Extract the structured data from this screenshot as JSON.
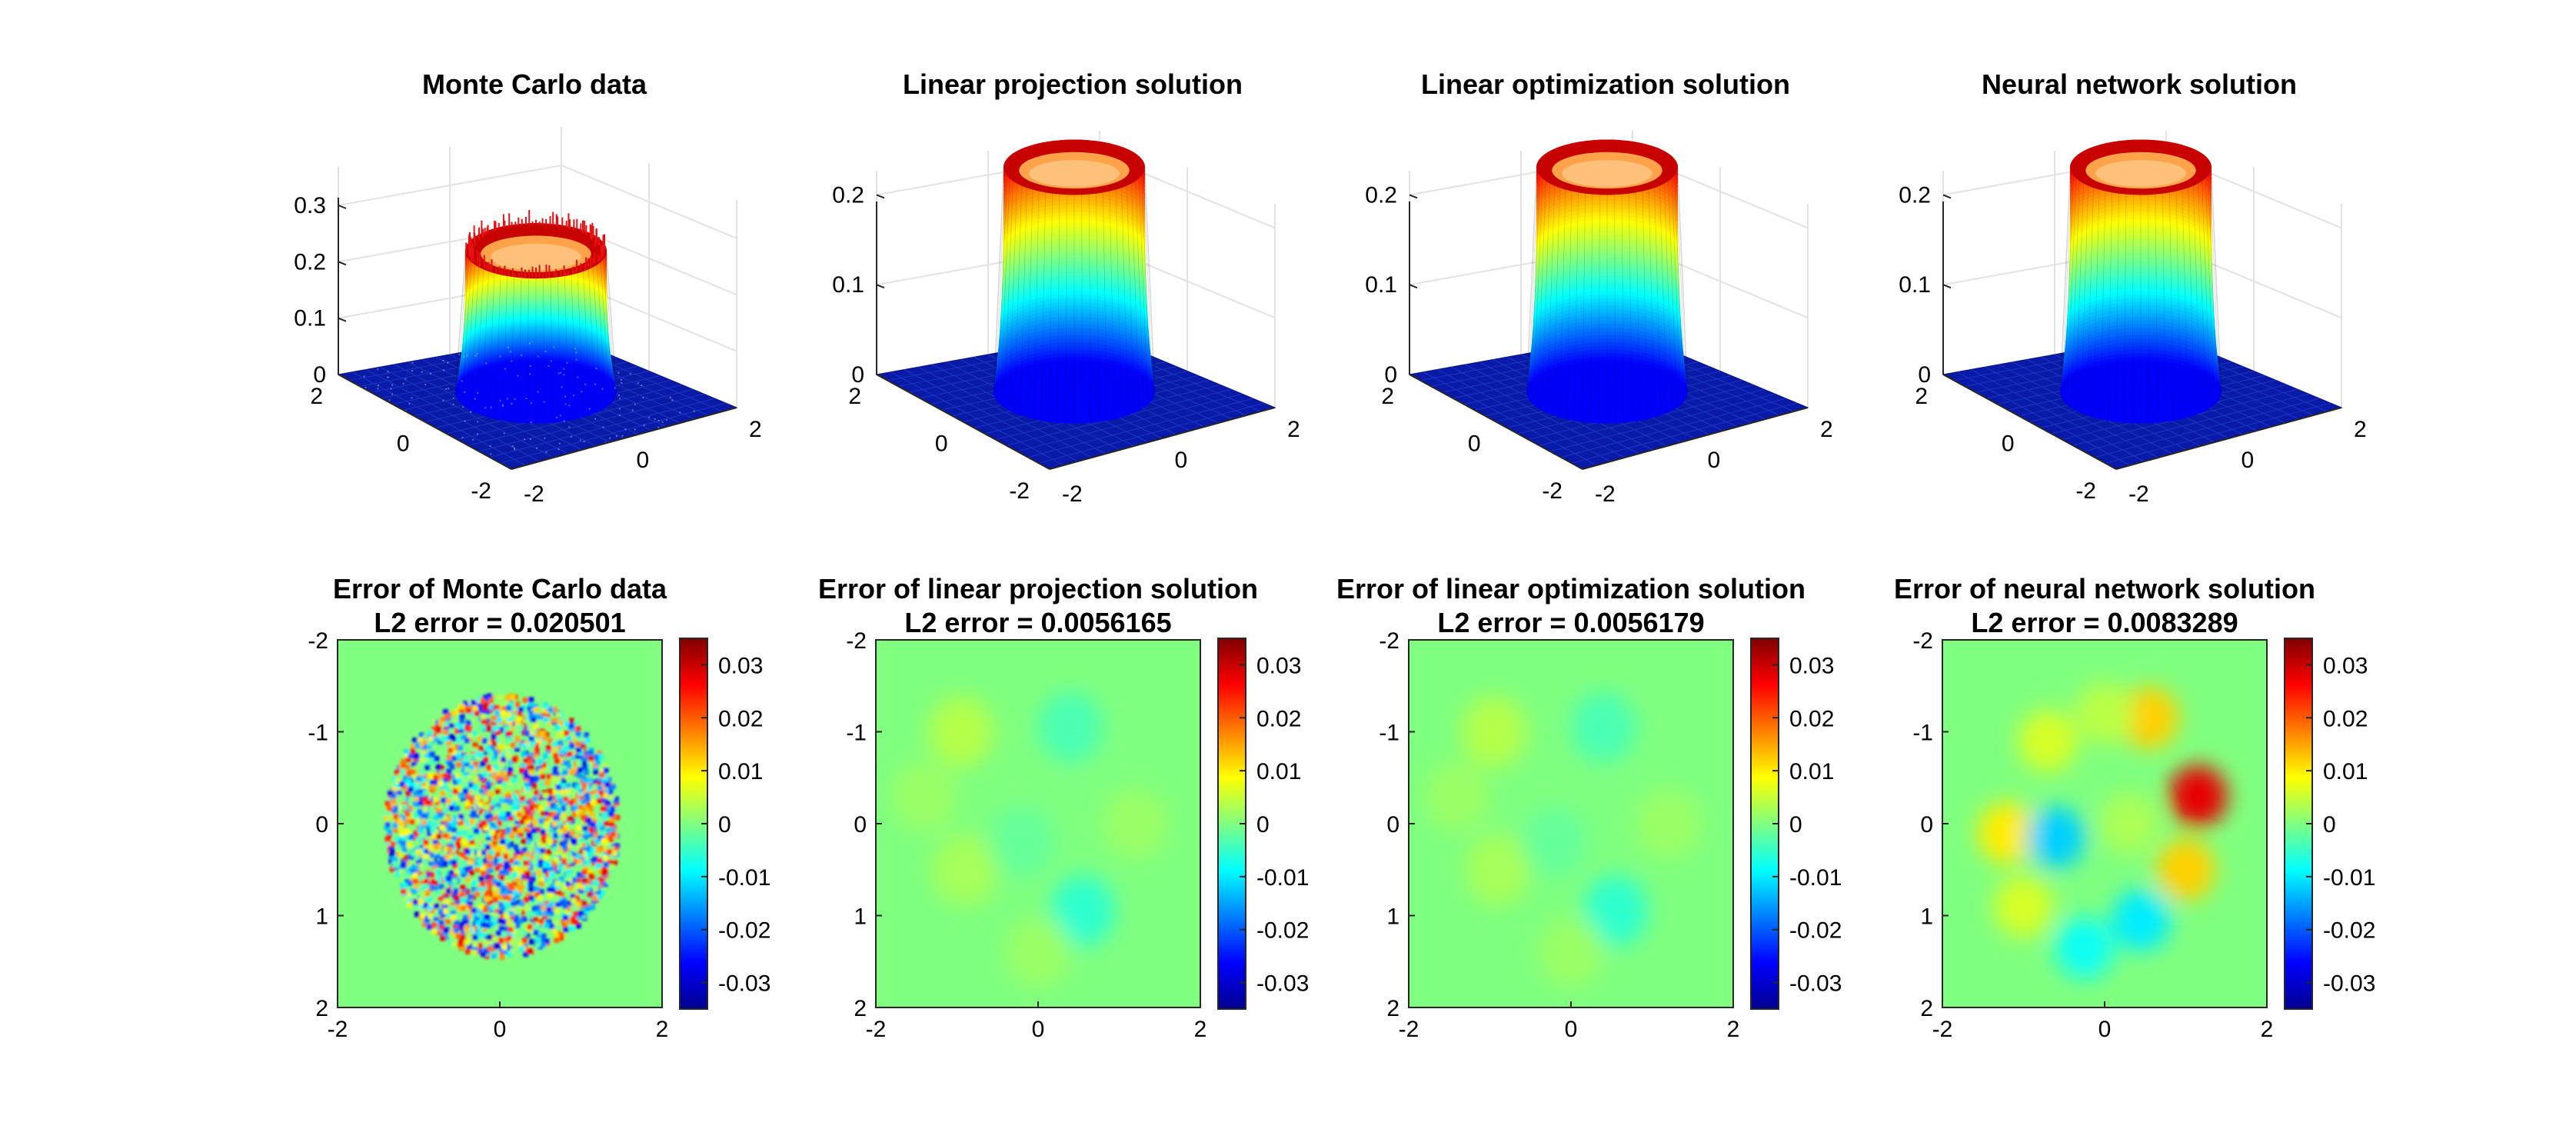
{
  "figure": {
    "background": "#ffffff"
  },
  "chart_data": [
    {
      "type": "surface",
      "title": "Monte Carlo data",
      "x_ticks": [
        "-2",
        "0",
        "2"
      ],
      "y_ticks": [
        "2",
        "0",
        "-2"
      ],
      "z_ticks": [
        "0",
        "0.1",
        "0.2",
        "0.3"
      ],
      "xlim": [
        -2,
        2
      ],
      "ylim": [
        -2,
        2
      ],
      "zlim": [
        0,
        0.3
      ],
      "colormap": "jet",
      "plateau_height": 0.25,
      "plateau_radius": 1.3,
      "noisy": true,
      "grid": true
    },
    {
      "type": "surface",
      "title": "Linear projection solution",
      "x_ticks": [
        "-2",
        "0",
        "2"
      ],
      "y_ticks": [
        "2",
        "0",
        "-2"
      ],
      "z_ticks": [
        "0",
        "0.1",
        "0.2"
      ],
      "xlim": [
        -2,
        2
      ],
      "ylim": [
        -2,
        2
      ],
      "zlim": [
        0,
        0.25
      ],
      "colormap": "jet",
      "plateau_height": 0.25,
      "plateau_radius": 1.3,
      "noisy": false,
      "grid": true
    },
    {
      "type": "surface",
      "title": "Linear optimization solution",
      "x_ticks": [
        "-2",
        "0",
        "2"
      ],
      "y_ticks": [
        "2",
        "0",
        "-2"
      ],
      "z_ticks": [
        "0",
        "0.1",
        "0.2"
      ],
      "xlim": [
        -2,
        2
      ],
      "ylim": [
        -2,
        2
      ],
      "zlim": [
        0,
        0.25
      ],
      "colormap": "jet",
      "plateau_height": 0.25,
      "plateau_radius": 1.3,
      "noisy": false,
      "grid": true
    },
    {
      "type": "surface",
      "title": "Neural network solution",
      "x_ticks": [
        "-2",
        "0",
        "2"
      ],
      "y_ticks": [
        "2",
        "0",
        "-2"
      ],
      "z_ticks": [
        "0",
        "0.1",
        "0.2"
      ],
      "xlim": [
        -2,
        2
      ],
      "ylim": [
        -2,
        2
      ],
      "zlim": [
        0,
        0.25
      ],
      "colormap": "jet",
      "plateau_height": 0.25,
      "plateau_radius": 1.3,
      "noisy": false,
      "grid": true
    },
    {
      "type": "heatmap",
      "title": "Error of Monte Carlo data",
      "subtitle": "L2 error = 0.020501",
      "x_ticks": [
        "-2",
        "0",
        "2"
      ],
      "y_ticks": [
        "-2",
        "-1",
        "0",
        "1",
        "2"
      ],
      "xlim": [
        -2,
        2
      ],
      "ylim": [
        -2,
        2
      ],
      "colorbar_ticks": [
        "0.03",
        "0.02",
        "0.01",
        "0",
        "-0.01",
        "-0.02",
        "-0.03"
      ],
      "clim": [
        -0.035,
        0.035
      ],
      "colormap": "jet",
      "pattern": "noise"
    },
    {
      "type": "heatmap",
      "title": "Error of linear projection solution",
      "subtitle": "L2 error = 0.0056165",
      "x_ticks": [
        "-2",
        "0",
        "2"
      ],
      "y_ticks": [
        "-2",
        "-1",
        "0",
        "1",
        "2"
      ],
      "xlim": [
        -2,
        2
      ],
      "ylim": [
        -2,
        2
      ],
      "colorbar_ticks": [
        "0.03",
        "0.02",
        "0.01",
        "0",
        "-0.01",
        "-0.02",
        "-0.03"
      ],
      "clim": [
        -0.035,
        0.035
      ],
      "colormap": "jet",
      "pattern": "smooth"
    },
    {
      "type": "heatmap",
      "title": "Error of linear optimization solution",
      "subtitle": "L2 error = 0.0056179",
      "x_ticks": [
        "-2",
        "0",
        "2"
      ],
      "y_ticks": [
        "-2",
        "-1",
        "0",
        "1",
        "2"
      ],
      "xlim": [
        -2,
        2
      ],
      "ylim": [
        -2,
        2
      ],
      "colorbar_ticks": [
        "0.03",
        "0.02",
        "0.01",
        "0",
        "-0.01",
        "-0.02",
        "-0.03"
      ],
      "clim": [
        -0.035,
        0.035
      ],
      "colormap": "jet",
      "pattern": "smooth"
    },
    {
      "type": "heatmap",
      "title": "Error of neural network solution",
      "subtitle": "L2 error = 0.0083289",
      "x_ticks": [
        "-2",
        "0",
        "2"
      ],
      "y_ticks": [
        "-2",
        "-1",
        "0",
        "1",
        "2"
      ],
      "xlim": [
        -2,
        2
      ],
      "ylim": [
        -2,
        2
      ],
      "colorbar_ticks": [
        "0.03",
        "0.02",
        "0.01",
        "0",
        "-0.01",
        "-0.02",
        "-0.03"
      ],
      "clim": [
        -0.035,
        0.035
      ],
      "colormap": "jet",
      "pattern": "ring"
    }
  ]
}
